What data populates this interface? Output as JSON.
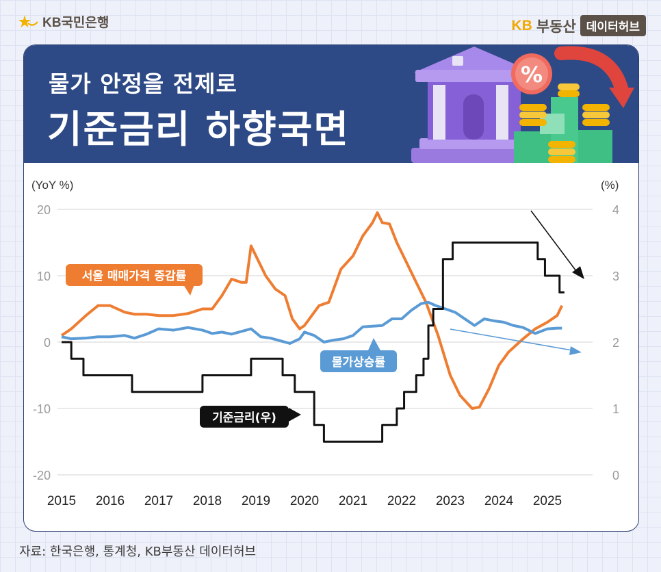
{
  "brand": {
    "left_logo": "KB국민은행",
    "right_logo_kb": "KB",
    "right_logo_name": "부동산",
    "right_logo_pill": "데이터허브"
  },
  "header": {
    "title_line1": "물가 안정을 전제로",
    "title_line2": "기준금리 하향국면"
  },
  "footer": {
    "source": "자료: 한국은행, 통계청, KB부동산 데이터허브"
  },
  "colors": {
    "seoul": "#ee7d32",
    "cpi": "#5b9bd5",
    "rate": "#111111",
    "header_bg": "#2d4a86",
    "brand_kb": "#f2a900"
  },
  "chart_data": {
    "type": "line",
    "title": "",
    "left_axis_label": "(YoY %)",
    "right_axis_label": "(%)",
    "x_ticks": [
      "2015",
      "2016",
      "2017",
      "2018",
      "2019",
      "2020",
      "2021",
      "2022",
      "2023",
      "2024",
      "2025"
    ],
    "left_ylim": [
      -20,
      20
    ],
    "left_ticks": [
      "20",
      "10",
      "0",
      "-10",
      "-20"
    ],
    "right_ylim": [
      0,
      4
    ],
    "right_ticks": [
      "4",
      "3",
      "2",
      "1",
      "0"
    ],
    "grid": true,
    "series": [
      {
        "name": "서울 매매가격 증감률",
        "axis": "left",
        "x": [
          2015.0,
          2015.2,
          2015.5,
          2015.75,
          2016.0,
          2016.3,
          2016.5,
          2016.75,
          2017.0,
          2017.3,
          2017.6,
          2017.9,
          2018.1,
          2018.3,
          2018.5,
          2018.7,
          2018.8,
          2018.9,
          2019.0,
          2019.2,
          2019.4,
          2019.6,
          2019.75,
          2019.9,
          2020.0,
          2020.15,
          2020.3,
          2020.5,
          2020.75,
          2021.0,
          2021.2,
          2021.4,
          2021.5,
          2021.6,
          2021.75,
          2021.9,
          2022.1,
          2022.3,
          2022.5,
          2022.75,
          2023.0,
          2023.2,
          2023.45,
          2023.6,
          2023.8,
          2024.0,
          2024.2,
          2024.5,
          2024.75,
          2025.0,
          2025.2,
          2025.3
        ],
        "values": [
          1,
          2,
          4,
          5.5,
          5.5,
          4.5,
          4.2,
          4.2,
          4,
          4,
          4.3,
          5,
          5,
          7,
          9.5,
          9,
          9,
          14.5,
          13,
          10,
          8,
          7,
          3.5,
          2,
          2.5,
          4,
          5.5,
          6,
          11,
          13,
          16,
          18,
          19.5,
          18,
          17.8,
          15,
          12,
          9,
          6,
          1,
          -5,
          -8,
          -10,
          -9.8,
          -7,
          -3.5,
          -1.5,
          0.5,
          2,
          3,
          4,
          5.5
        ]
      },
      {
        "name": "물가상승률",
        "axis": "left",
        "x": [
          2015.0,
          2015.2,
          2015.5,
          2015.75,
          2016.0,
          2016.3,
          2016.5,
          2016.75,
          2017.0,
          2017.3,
          2017.6,
          2017.9,
          2018.1,
          2018.3,
          2018.5,
          2018.7,
          2018.9,
          2019.1,
          2019.3,
          2019.5,
          2019.7,
          2019.9,
          2020.0,
          2020.2,
          2020.4,
          2020.6,
          2020.8,
          2021.0,
          2021.2,
          2021.4,
          2021.6,
          2021.8,
          2022.0,
          2022.2,
          2022.4,
          2022.55,
          2022.7,
          2022.9,
          2023.1,
          2023.3,
          2023.5,
          2023.7,
          2023.9,
          2024.1,
          2024.3,
          2024.5,
          2024.75,
          2025.0,
          2025.2,
          2025.3
        ],
        "values": [
          0.8,
          0.5,
          0.6,
          0.8,
          0.8,
          1.0,
          0.6,
          1.2,
          2.0,
          1.8,
          2.2,
          1.8,
          1.3,
          1.5,
          1.2,
          1.6,
          2.0,
          0.8,
          0.6,
          0.2,
          -0.2,
          0.5,
          1.5,
          1.0,
          0.0,
          0.3,
          0.5,
          1.0,
          2.3,
          2.4,
          2.5,
          3.5,
          3.5,
          4.8,
          5.8,
          6.0,
          5.5,
          5.0,
          4.5,
          3.5,
          2.5,
          3.5,
          3.2,
          3.0,
          2.5,
          2.2,
          1.3,
          2.0,
          2.1,
          2.1
        ]
      },
      {
        "name": "기준금리(우)",
        "axis": "right",
        "step": true,
        "x": [
          2015.0,
          2015.2,
          2015.45,
          2016.45,
          2017.9,
          2018.9,
          2019.55,
          2019.8,
          2020.2,
          2020.4,
          2021.6,
          2021.9,
          2022.05,
          2022.3,
          2022.45,
          2022.55,
          2022.65,
          2022.85,
          2023.05,
          2024.8,
          2024.95,
          2025.25,
          2025.35
        ],
        "values": [
          2.0,
          1.75,
          1.5,
          1.25,
          1.5,
          1.75,
          1.5,
          1.25,
          0.75,
          0.5,
          0.75,
          1.0,
          1.25,
          1.5,
          1.75,
          2.25,
          2.5,
          3.25,
          3.5,
          3.25,
          3.0,
          2.75,
          2.75
        ]
      }
    ],
    "annotations": [
      {
        "text": "서울 매매가격 증감률",
        "series": "서울 매매가격 증감률"
      },
      {
        "text": "물가상승률",
        "series": "물가상승률"
      },
      {
        "text": "기준금리(우)",
        "series": "기준금리(우)"
      }
    ]
  }
}
